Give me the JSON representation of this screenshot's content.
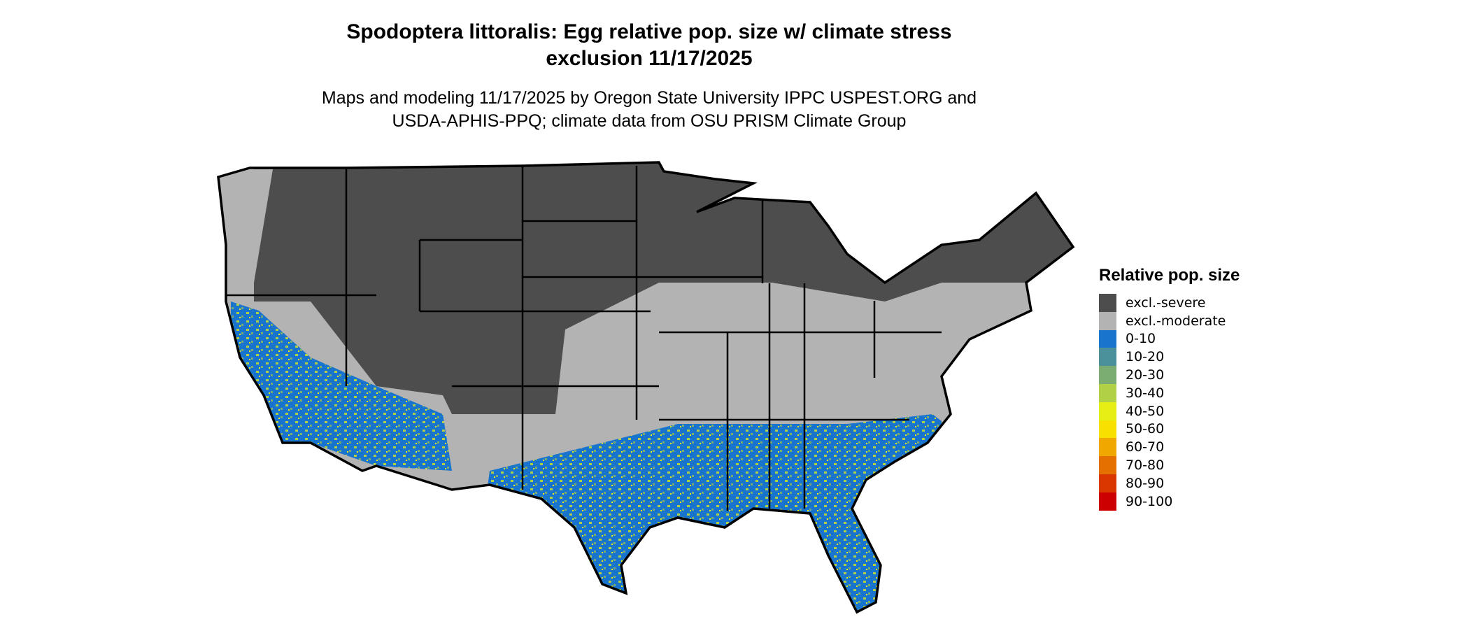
{
  "title_line1": "Spodoptera littoralis: Egg relative pop. size w/ climate stress",
  "title_line2": "exclusion 11/17/2025",
  "subtitle_line1": "Maps and modeling 11/17/2025 by Oregon State University IPPC USPEST.ORG and",
  "subtitle_line2": "USDA-APHIS-PPQ; climate data from OSU PRISM Climate Group",
  "legend": {
    "title": "Relative pop. size",
    "items": [
      {
        "label": "excl.-severe",
        "color": "#4d4d4d"
      },
      {
        "label": "excl.-moderate",
        "color": "#b3b3b3"
      },
      {
        "label": "0-10",
        "color": "#1874cd"
      },
      {
        "label": "10-20",
        "color": "#4a919b"
      },
      {
        "label": "20-30",
        "color": "#7bad73"
      },
      {
        "label": "30-40",
        "color": "#b2d045"
      },
      {
        "label": "40-50",
        "color": "#e5ef16"
      },
      {
        "label": "50-60",
        "color": "#f8e000"
      },
      {
        "label": "60-70",
        "color": "#f0a800"
      },
      {
        "label": "70-80",
        "color": "#e57000"
      },
      {
        "label": "80-90",
        "color": "#d83800"
      },
      {
        "label": "90-100",
        "color": "#cc0000"
      }
    ]
  }
}
